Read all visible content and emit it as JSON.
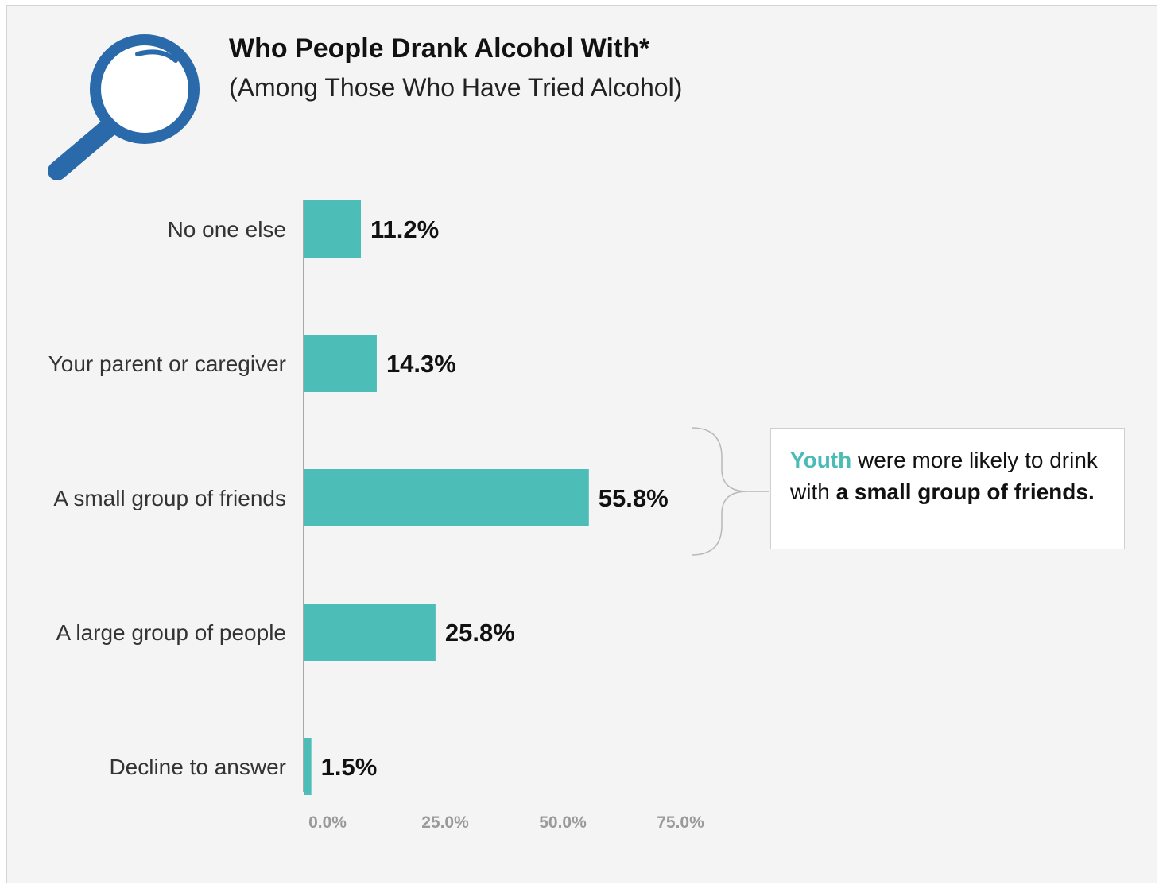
{
  "header": {
    "title": "Who People Drank Alcohol With*",
    "subtitle": "(Among Those Who Have Tried Alcohol)",
    "icon": "magnifying-glass-icon"
  },
  "callout": {
    "highlight": "Youth",
    "text_1": " were more likely to drink with ",
    "bold": "a small group of friends."
  },
  "colors": {
    "bar": "#4dbdb7",
    "icon": "#2a6aab",
    "highlight": "#4bbbb6"
  },
  "chart_data": {
    "type": "bar",
    "orientation": "horizontal",
    "categories": [
      "No one else",
      "Your parent or caregiver",
      "A small group of friends",
      "A large group of people",
      "Decline to answer"
    ],
    "values": [
      11.2,
      14.3,
      55.8,
      25.8,
      1.5
    ],
    "value_labels": [
      "11.2%",
      "14.3%",
      "55.8%",
      "25.8%",
      "1.5%"
    ],
    "x_ticks": [
      0,
      25,
      50,
      75
    ],
    "x_tick_labels": [
      "0.0%",
      "25.0%",
      "50.0%",
      "75.0%"
    ],
    "xlim": [
      0,
      75
    ],
    "grid": false
  }
}
